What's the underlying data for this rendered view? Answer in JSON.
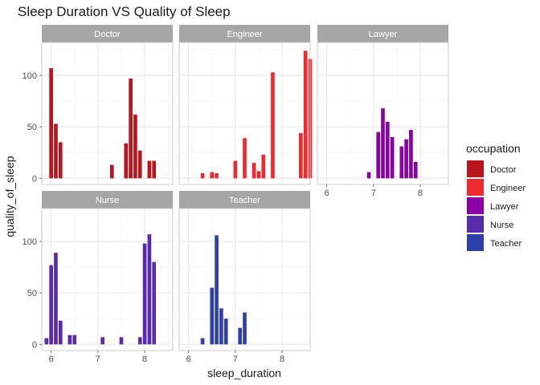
{
  "chart_data": {
    "type": "bar",
    "title": "Sleep Duration VS Quality of Sleep",
    "xlabel": "sleep_duration",
    "ylabel": "quality_of_sleep",
    "xlim": [
      5.8,
      8.6
    ],
    "ylim": [
      -6,
      132
    ],
    "x_ticks": [
      6,
      7,
      8
    ],
    "y_ticks": [
      0,
      50,
      100
    ],
    "bar_width": 0.08,
    "grid": true,
    "facet_by": "occupation",
    "legend": {
      "title": "occupation",
      "position": "right",
      "items": [
        {
          "label": "Doctor",
          "color": "#B8151F"
        },
        {
          "label": "Engineer",
          "color": "#EE2A2E"
        },
        {
          "label": "Lawyer",
          "color": "#8B00A6"
        },
        {
          "label": "Nurse",
          "color": "#5A2BA9"
        },
        {
          "label": "Teacher",
          "color": "#2F3FAA"
        }
      ]
    },
    "panels": [
      {
        "name": "Doctor",
        "color": "#B8151F",
        "points": [
          [
            6.0,
            107
          ],
          [
            6.1,
            53
          ],
          [
            6.2,
            35
          ],
          [
            7.3,
            13
          ],
          [
            7.6,
            34
          ],
          [
            7.7,
            97
          ],
          [
            7.8,
            62
          ],
          [
            7.9,
            27
          ],
          [
            8.1,
            17
          ],
          [
            8.2,
            17
          ]
        ]
      },
      {
        "name": "Engineer",
        "color": "#EE2A2E",
        "points": [
          [
            6.3,
            5
          ],
          [
            6.5,
            6
          ],
          [
            6.6,
            5
          ],
          [
            7.0,
            17
          ],
          [
            7.2,
            39
          ],
          [
            7.4,
            15
          ],
          [
            7.5,
            7
          ],
          [
            7.6,
            23
          ],
          [
            7.8,
            103
          ],
          [
            8.4,
            44
          ],
          [
            8.5,
            124
          ],
          [
            8.6,
            116
          ]
        ]
      },
      {
        "name": "Lawyer",
        "color": "#8B00A6",
        "points": [
          [
            6.9,
            6
          ],
          [
            7.1,
            45
          ],
          [
            7.2,
            68
          ],
          [
            7.3,
            55
          ],
          [
            7.4,
            40
          ],
          [
            7.6,
            31
          ],
          [
            7.7,
            38
          ],
          [
            7.8,
            47
          ],
          [
            7.9,
            16
          ]
        ]
      },
      {
        "name": "Nurse",
        "color": "#5A2BA9",
        "points": [
          [
            5.9,
            6
          ],
          [
            6.0,
            77
          ],
          [
            6.1,
            89
          ],
          [
            6.2,
            23
          ],
          [
            6.4,
            9
          ],
          [
            6.5,
            9
          ],
          [
            7.1,
            7
          ],
          [
            7.5,
            7
          ],
          [
            7.9,
            7
          ],
          [
            8.0,
            98
          ],
          [
            8.1,
            107
          ],
          [
            8.2,
            80
          ]
        ]
      },
      {
        "name": "Teacher",
        "color": "#2F3FAA",
        "points": [
          [
            6.3,
            6
          ],
          [
            6.5,
            55
          ],
          [
            6.6,
            106
          ],
          [
            6.7,
            35
          ],
          [
            6.8,
            25
          ],
          [
            7.1,
            16
          ],
          [
            7.2,
            31
          ]
        ]
      }
    ]
  }
}
